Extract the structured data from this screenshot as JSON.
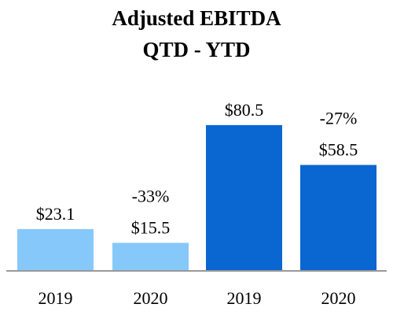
{
  "chart_data": {
    "type": "bar",
    "title": "Adjusted EBITDA",
    "subtitle": "QTD - YTD",
    "xlabel": "",
    "ylabel": "",
    "grid": false,
    "ylim": [
      0,
      100
    ],
    "categories": [
      "2019",
      "2020",
      "2019",
      "2020"
    ],
    "values": [
      23.1,
      15.5,
      80.5,
      58.5
    ],
    "value_labels": [
      "$23.1",
      "$15.5",
      "$80.5",
      "$58.5"
    ],
    "groups": [
      {
        "indices": [
          0,
          1
        ],
        "change_label": "-33%"
      },
      {
        "indices": [
          2,
          3
        ],
        "change_label": "-27%"
      }
    ],
    "bar_colors": [
      "#87c8fb",
      "#87c8fb",
      "#0a66d1",
      "#0a66d1"
    ],
    "baseline_color": "#999999"
  }
}
